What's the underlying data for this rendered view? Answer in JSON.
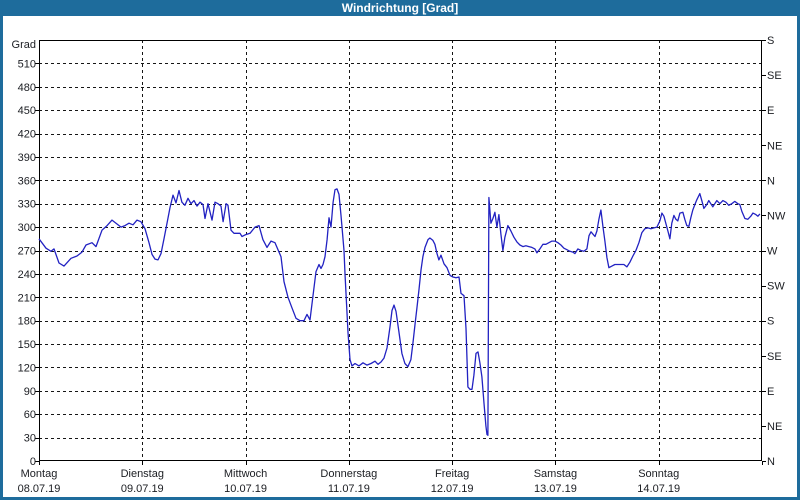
{
  "window": {
    "title": "Windrichtung [Grad]"
  },
  "colors": {
    "titlebar_bg": "#1e6c9c",
    "titlebar_text": "#ffffff",
    "frame": "#1e6c9c",
    "plot_bg": "#ffffff",
    "grid": "#161616",
    "axis_line": "#000000",
    "axis_text": "#1b1d22",
    "series_line": "#2222c2"
  },
  "chart_data": {
    "type": "line",
    "title": "Windrichtung [Grad]",
    "grid": {
      "style": "dashed",
      "h_step_deg": 30,
      "v_step_days": 1
    },
    "y_left": {
      "unit_label": "Grad",
      "range": [
        0,
        540
      ],
      "ticks": [
        510,
        480,
        450,
        420,
        390,
        360,
        330,
        300,
        270,
        240,
        210,
        180,
        150,
        120,
        90,
        60,
        30,
        0
      ]
    },
    "y_right": {
      "labels": [
        {
          "deg": 540,
          "label": "S"
        },
        {
          "deg": 495,
          "label": "SE"
        },
        {
          "deg": 450,
          "label": "E"
        },
        {
          "deg": 405,
          "label": "NE"
        },
        {
          "deg": 360,
          "label": "N"
        },
        {
          "deg": 315,
          "label": "NW"
        },
        {
          "deg": 270,
          "label": "W"
        },
        {
          "deg": 225,
          "label": "SW"
        },
        {
          "deg": 180,
          "label": "S"
        },
        {
          "deg": 135,
          "label": "SE"
        },
        {
          "deg": 90,
          "label": "E"
        },
        {
          "deg": 45,
          "label": "NE"
        },
        {
          "deg": 0,
          "label": "N"
        }
      ]
    },
    "x_axis": {
      "range_days": [
        0,
        7
      ],
      "days": [
        {
          "weekday": "Montag",
          "date": "08.07.19"
        },
        {
          "weekday": "Dienstag",
          "date": "09.07.19"
        },
        {
          "weekday": "Mittwoch",
          "date": "10.07.19"
        },
        {
          "weekday": "Donnerstag",
          "date": "11.07.19"
        },
        {
          "weekday": "Freitag",
          "date": "12.07.19"
        },
        {
          "weekday": "Samstag",
          "date": "13.07.19"
        },
        {
          "weekday": "Sonntag",
          "date": "14.07.19"
        }
      ]
    },
    "series": [
      {
        "name": "Windrichtung",
        "unit": "Grad",
        "color": "#2222c2",
        "points": [
          [
            0.0,
            285
          ],
          [
            0.068,
            273
          ],
          [
            0.116,
            269
          ],
          [
            0.145,
            272
          ],
          [
            0.194,
            254
          ],
          [
            0.242,
            250
          ],
          [
            0.31,
            260
          ],
          [
            0.368,
            263
          ],
          [
            0.416,
            268
          ],
          [
            0.455,
            277
          ],
          [
            0.513,
            280
          ],
          [
            0.552,
            275
          ],
          [
            0.61,
            296
          ],
          [
            0.659,
            302
          ],
          [
            0.707,
            309
          ],
          [
            0.755,
            304
          ],
          [
            0.794,
            300
          ],
          [
            0.833,
            302
          ],
          [
            0.871,
            305
          ],
          [
            0.91,
            303
          ],
          [
            0.949,
            309
          ],
          [
            0.987,
            307
          ],
          [
            1.026,
            298
          ],
          [
            1.065,
            280
          ],
          [
            1.094,
            265
          ],
          [
            1.123,
            259
          ],
          [
            1.152,
            258
          ],
          [
            1.181,
            266
          ],
          [
            1.21,
            285
          ],
          [
            1.239,
            305
          ],
          [
            1.268,
            325
          ],
          [
            1.297,
            341
          ],
          [
            1.326,
            331
          ],
          [
            1.355,
            347
          ],
          [
            1.384,
            332
          ],
          [
            1.413,
            328
          ],
          [
            1.443,
            337
          ],
          [
            1.472,
            330
          ],
          [
            1.501,
            334
          ],
          [
            1.53,
            327
          ],
          [
            1.559,
            332
          ],
          [
            1.588,
            329
          ],
          [
            1.607,
            311
          ],
          [
            1.636,
            330
          ],
          [
            1.675,
            309
          ],
          [
            1.704,
            332
          ],
          [
            1.733,
            330
          ],
          [
            1.762,
            327
          ],
          [
            1.782,
            307
          ],
          [
            1.811,
            330
          ],
          [
            1.83,
            328
          ],
          [
            1.859,
            296
          ],
          [
            1.888,
            292
          ],
          [
            1.917,
            292
          ],
          [
            1.946,
            292
          ],
          [
            1.965,
            288
          ],
          [
            1.995,
            290
          ],
          [
            2.043,
            292
          ],
          [
            2.091,
            300
          ],
          [
            2.13,
            302
          ],
          [
            2.168,
            284
          ],
          [
            2.207,
            274
          ],
          [
            2.246,
            282
          ],
          [
            2.285,
            280
          ],
          [
            2.314,
            271
          ],
          [
            2.343,
            262
          ],
          [
            2.372,
            230
          ],
          [
            2.411,
            210
          ],
          [
            2.45,
            196
          ],
          [
            2.488,
            183
          ],
          [
            2.527,
            180
          ],
          [
            2.566,
            180
          ],
          [
            2.595,
            188
          ],
          [
            2.624,
            181
          ],
          [
            2.653,
            212
          ],
          [
            2.682,
            243
          ],
          [
            2.711,
            252
          ],
          [
            2.73,
            247
          ],
          [
            2.75,
            252
          ],
          [
            2.769,
            262
          ],
          [
            2.789,
            284
          ],
          [
            2.808,
            312
          ],
          [
            2.827,
            300
          ],
          [
            2.847,
            332
          ],
          [
            2.866,
            348
          ],
          [
            2.885,
            349
          ],
          [
            2.905,
            342
          ],
          [
            2.924,
            315
          ],
          [
            2.934,
            300
          ],
          [
            2.953,
            270
          ],
          [
            2.963,
            240
          ],
          [
            2.972,
            215
          ],
          [
            2.982,
            190
          ],
          [
            2.992,
            165
          ],
          [
            3.011,
            130
          ],
          [
            3.03,
            122
          ],
          [
            3.059,
            125
          ],
          [
            3.098,
            122
          ],
          [
            3.137,
            126
          ],
          [
            3.175,
            123
          ],
          [
            3.214,
            125
          ],
          [
            3.253,
            128
          ],
          [
            3.282,
            124
          ],
          [
            3.311,
            127
          ],
          [
            3.34,
            132
          ],
          [
            3.369,
            145
          ],
          [
            3.398,
            172
          ],
          [
            3.418,
            193
          ],
          [
            3.437,
            200
          ],
          [
            3.456,
            192
          ],
          [
            3.485,
            165
          ],
          [
            3.514,
            138
          ],
          [
            3.543,
            125
          ],
          [
            3.572,
            121
          ],
          [
            3.601,
            130
          ],
          [
            3.621,
            152
          ],
          [
            3.64,
            175
          ],
          [
            3.659,
            196
          ],
          [
            3.679,
            220
          ],
          [
            3.698,
            245
          ],
          [
            3.717,
            262
          ],
          [
            3.737,
            274
          ],
          [
            3.766,
            284
          ],
          [
            3.785,
            286
          ],
          [
            3.814,
            283
          ],
          [
            3.833,
            278
          ],
          [
            3.853,
            266
          ],
          [
            3.872,
            258
          ],
          [
            3.892,
            264
          ],
          [
            3.921,
            253
          ],
          [
            3.95,
            248
          ],
          [
            3.979,
            238
          ],
          [
            4.008,
            236
          ],
          [
            4.037,
            235
          ],
          [
            4.066,
            236
          ],
          [
            4.086,
            215
          ],
          [
            4.115,
            212
          ],
          [
            4.134,
            170
          ],
          [
            4.153,
            95
          ],
          [
            4.173,
            92
          ],
          [
            4.192,
            92
          ],
          [
            4.211,
            110
          ],
          [
            4.231,
            138
          ],
          [
            4.25,
            140
          ],
          [
            4.269,
            126
          ],
          [
            4.288,
            108
          ],
          [
            4.308,
            74
          ],
          [
            4.327,
            45
          ],
          [
            4.337,
            34
          ],
          [
            4.346,
            33
          ],
          [
            4.356,
            338
          ],
          [
            4.375,
            305
          ],
          [
            4.395,
            311
          ],
          [
            4.414,
            319
          ],
          [
            4.433,
            300
          ],
          [
            4.453,
            316
          ],
          [
            4.472,
            291
          ],
          [
            4.491,
            270
          ],
          [
            4.511,
            287
          ],
          [
            4.54,
            302
          ],
          [
            4.569,
            295
          ],
          [
            4.598,
            287
          ],
          [
            4.627,
            281
          ],
          [
            4.656,
            277
          ],
          [
            4.685,
            275
          ],
          [
            4.714,
            276
          ],
          [
            4.743,
            275
          ],
          [
            4.772,
            274
          ],
          [
            4.801,
            272
          ],
          [
            4.821,
            267
          ],
          [
            4.85,
            272
          ],
          [
            4.879,
            278
          ],
          [
            4.908,
            278
          ],
          [
            4.937,
            280
          ],
          [
            4.966,
            282
          ],
          [
            4.995,
            282
          ],
          [
            5.024,
            280
          ],
          [
            5.053,
            277
          ],
          [
            5.082,
            273
          ],
          [
            5.111,
            271
          ],
          [
            5.14,
            269
          ],
          [
            5.169,
            268
          ],
          [
            5.189,
            266
          ],
          [
            5.218,
            272
          ],
          [
            5.247,
            270
          ],
          [
            5.276,
            269
          ],
          [
            5.305,
            272
          ],
          [
            5.325,
            289
          ],
          [
            5.344,
            294
          ],
          [
            5.363,
            291
          ],
          [
            5.383,
            288
          ],
          [
            5.402,
            295
          ],
          [
            5.421,
            310
          ],
          [
            5.44,
            322
          ],
          [
            5.46,
            301
          ],
          [
            5.479,
            282
          ],
          [
            5.498,
            261
          ],
          [
            5.518,
            248
          ],
          [
            5.547,
            250
          ],
          [
            5.576,
            252
          ],
          [
            5.605,
            252
          ],
          [
            5.634,
            252
          ],
          [
            5.663,
            252
          ],
          [
            5.692,
            249
          ],
          [
            5.721,
            255
          ],
          [
            5.75,
            263
          ],
          [
            5.779,
            270
          ],
          [
            5.808,
            280
          ],
          [
            5.837,
            293
          ],
          [
            5.866,
            298
          ],
          [
            5.895,
            299
          ],
          [
            5.924,
            298
          ],
          [
            5.953,
            299
          ],
          [
            5.982,
            300
          ],
          [
            6.011,
            308
          ],
          [
            6.031,
            318
          ],
          [
            6.05,
            314
          ],
          [
            6.069,
            305
          ],
          [
            6.089,
            295
          ],
          [
            6.108,
            285
          ],
          [
            6.127,
            305
          ],
          [
            6.147,
            315
          ],
          [
            6.166,
            310
          ],
          [
            6.185,
            308
          ],
          [
            6.205,
            318
          ],
          [
            6.234,
            319
          ],
          [
            6.253,
            310
          ],
          [
            6.272,
            302
          ],
          [
            6.292,
            301
          ],
          [
            6.311,
            312
          ],
          [
            6.33,
            322
          ],
          [
            6.35,
            329
          ],
          [
            6.369,
            335
          ],
          [
            6.398,
            343
          ],
          [
            6.417,
            334
          ],
          [
            6.437,
            324
          ],
          [
            6.466,
            329
          ],
          [
            6.485,
            334
          ],
          [
            6.504,
            330
          ],
          [
            6.524,
            326
          ],
          [
            6.543,
            330
          ],
          [
            6.562,
            334
          ],
          [
            6.592,
            330
          ],
          [
            6.621,
            334
          ],
          [
            6.65,
            332
          ],
          [
            6.679,
            328
          ],
          [
            6.708,
            330
          ],
          [
            6.737,
            333
          ],
          [
            6.766,
            330
          ],
          [
            6.785,
            329
          ],
          [
            6.805,
            320
          ],
          [
            6.834,
            311
          ],
          [
            6.863,
            310
          ],
          [
            6.892,
            314
          ],
          [
            6.912,
            318
          ],
          [
            6.941,
            316
          ],
          [
            6.96,
            314
          ],
          [
            6.98,
            317
          ]
        ]
      }
    ]
  }
}
